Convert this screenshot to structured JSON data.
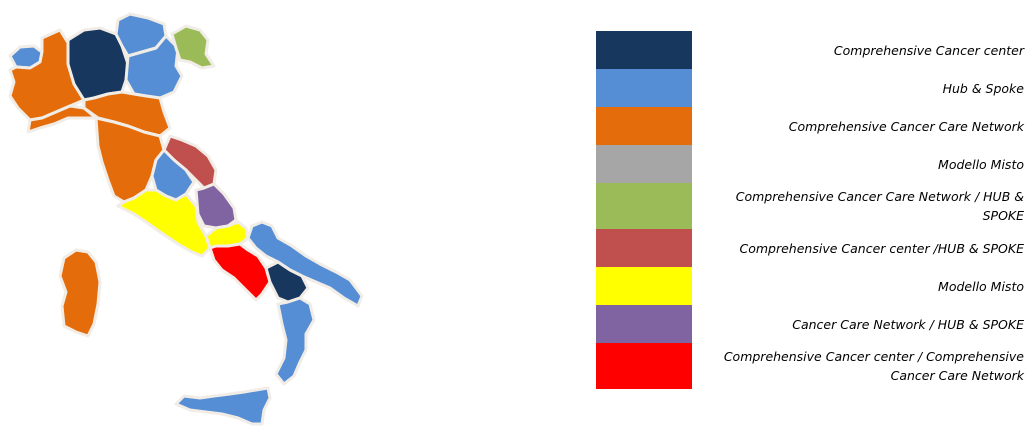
{
  "map": {
    "regions": [
      {
        "name": "valle-d-aosta",
        "model": "hub-and-spoke",
        "color": "#558ed5"
      },
      {
        "name": "piemonte",
        "model": "comprehensive-cancer-care-network",
        "color": "#e46c0a"
      },
      {
        "name": "lombardia",
        "model": "comprehensive-cancer-center",
        "color": "#17375e"
      },
      {
        "name": "trentino-alto-adige",
        "model": "hub-and-spoke",
        "color": "#558ed5"
      },
      {
        "name": "veneto",
        "model": "hub-and-spoke",
        "color": "#558ed5"
      },
      {
        "name": "friuli-venezia-giulia",
        "model": "comprehensive-cancer-care-network-hub-spoke",
        "color": "#9bbb59"
      },
      {
        "name": "liguria",
        "model": "comprehensive-cancer-care-network",
        "color": "#e46c0a"
      },
      {
        "name": "emilia-romagna",
        "model": "comprehensive-cancer-care-network",
        "color": "#e46c0a"
      },
      {
        "name": "toscana",
        "model": "comprehensive-cancer-care-network",
        "color": "#e46c0a"
      },
      {
        "name": "marche",
        "model": "comprehensive-cancer-center-hub-spoke",
        "color": "#c0504d"
      },
      {
        "name": "umbria",
        "model": "hub-and-spoke",
        "color": "#558ed5"
      },
      {
        "name": "lazio",
        "model": "modello-misto",
        "color": "#ffff00"
      },
      {
        "name": "abruzzo",
        "model": "cancer-care-network-hub-spoke",
        "color": "#8064a2"
      },
      {
        "name": "molise",
        "model": "modello-misto",
        "color": "#ffff00"
      },
      {
        "name": "campania",
        "model": "comprehensive-cancer-center-comprehensive-cancer-care-network",
        "color": "#ff0000"
      },
      {
        "name": "puglia",
        "model": "hub-and-spoke",
        "color": "#558ed5"
      },
      {
        "name": "basilicata",
        "model": "comprehensive-cancer-center",
        "color": "#17375e"
      },
      {
        "name": "calabria",
        "model": "hub-and-spoke",
        "color": "#558ed5"
      },
      {
        "name": "sicilia",
        "model": "hub-and-spoke",
        "color": "#558ed5"
      },
      {
        "name": "sardegna",
        "model": "comprehensive-cancer-care-network",
        "color": "#e46c0a"
      }
    ]
  },
  "legend": {
    "items": [
      {
        "name": "legend-item-comprehensive-cancer-center",
        "label": "Comprehensive Cancer center",
        "color": "#17375e"
      },
      {
        "name": "legend-item-hub-spoke",
        "label": "Hub & Spoke",
        "color": "#558ed5"
      },
      {
        "name": "legend-item-comprehensive-cancer-care-network",
        "label": "Comprehensive Cancer Care Network",
        "color": "#e46c0a"
      },
      {
        "name": "legend-item-modello-misto-gray",
        "label": "Modello Misto",
        "color": "#a6a6a6"
      },
      {
        "name": "legend-item-cccn-hub-spoke",
        "label": "Comprehensive Cancer Care Network / HUB & SPOKE",
        "color": "#9bbb59"
      },
      {
        "name": "legend-item-ccc-hub-spoke",
        "label": "Comprehensive Cancer center /HUB & SPOKE",
        "color": "#c0504d"
      },
      {
        "name": "legend-item-modello-misto-yellow",
        "label": "Modello Misto",
        "color": "#ffff00"
      },
      {
        "name": "legend-item-ccn-hub-spoke",
        "label": "Cancer Care Network / HUB & SPOKE",
        "color": "#8064a2"
      },
      {
        "name": "legend-item-ccc-cccn",
        "label": "Comprehensive Cancer center /  Comprehensive Cancer Care Network",
        "color": "#ff0000"
      }
    ]
  }
}
